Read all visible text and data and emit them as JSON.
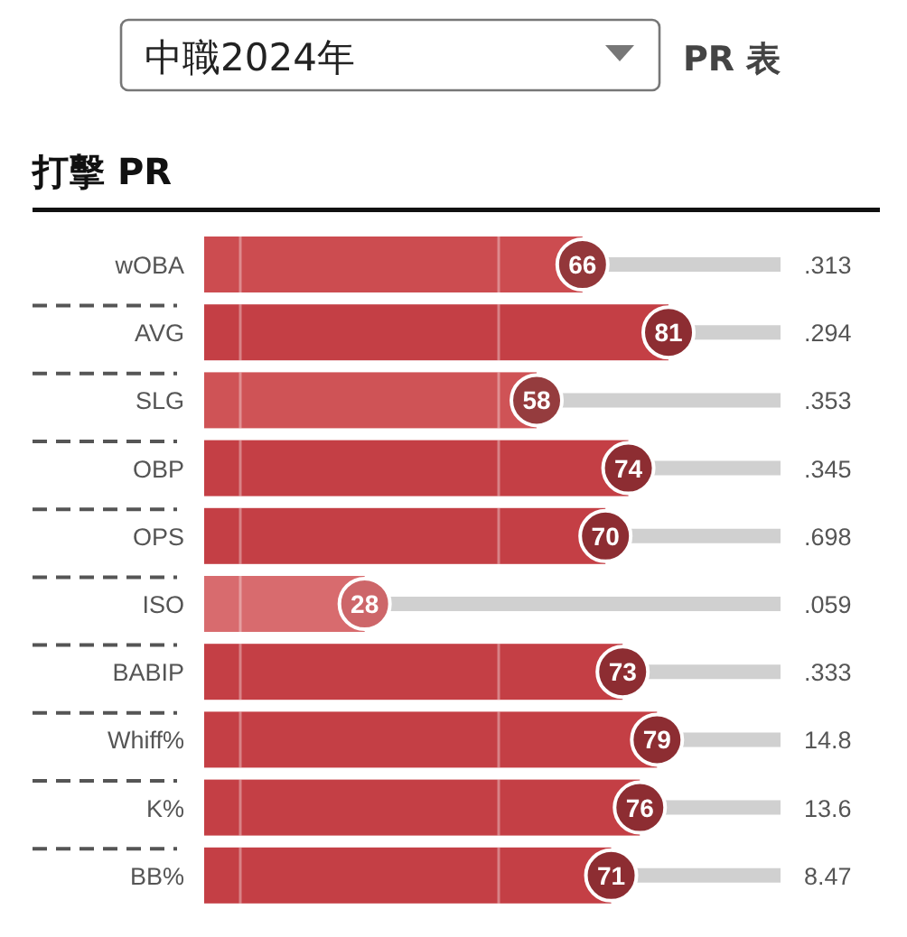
{
  "chart_data": {
    "type": "bar",
    "orientation": "horizontal",
    "title": "打擊 PR",
    "categories": [
      "wOBA",
      "AVG",
      "SLG",
      "OBP",
      "OPS",
      "ISO",
      "BABIP",
      "Whiff%",
      "K%",
      "BB%"
    ],
    "values": [
      66,
      81,
      58,
      74,
      70,
      28,
      73,
      79,
      76,
      71
    ],
    "colors": [
      "#cc4c50",
      "#c43f45",
      "#cf5356",
      "#c43f45",
      "#c43f45",
      "#d86b6e",
      "#c43f45",
      "#c43f45",
      "#c43f45",
      "#c43f45"
    ],
    "data_labels": true,
    "annotations": [
      "中職2024年",
      "PR 表",
      ".313",
      ".294",
      ".353",
      ".345",
      ".698",
      ".059",
      ".333",
      "14.8",
      "13.6",
      "8.47"
    ]
  }
}
